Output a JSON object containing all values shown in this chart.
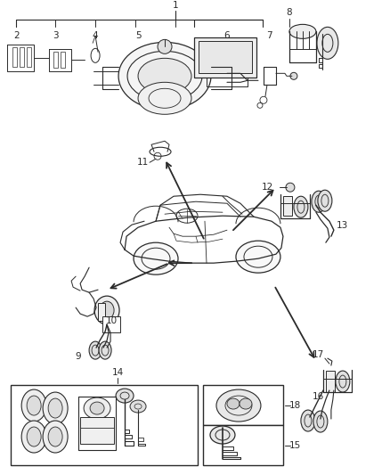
{
  "bg_color": "#ffffff",
  "line_color": "#2a2a2a",
  "text_color": "#2a2a2a",
  "fig_width": 4.38,
  "fig_height": 5.33,
  "dpi": 100
}
